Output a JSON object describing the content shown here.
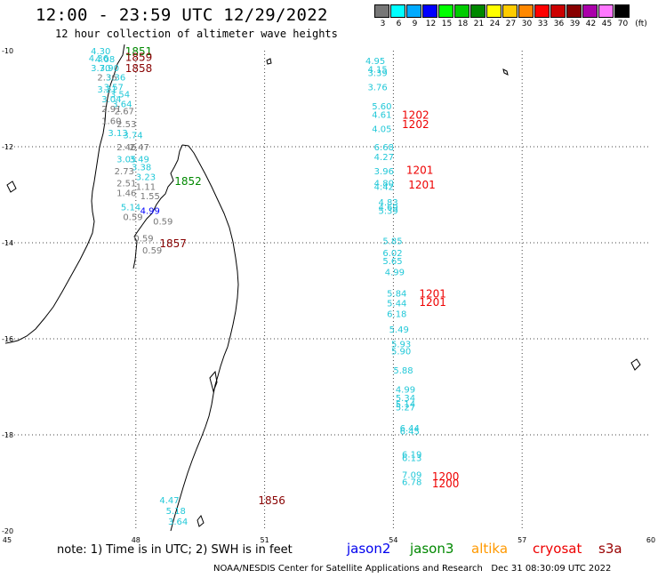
{
  "header": {
    "title": "12:00 - 23:59 UTC 12/29/2022",
    "subtitle": "12 hour collection of altimeter wave heights"
  },
  "legend": {
    "unit": "(ft)",
    "bins": [
      {
        "label": "3",
        "color": "#777777"
      },
      {
        "label": "6",
        "color": "#00ffff"
      },
      {
        "label": "9",
        "color": "#00aaff"
      },
      {
        "label": "12",
        "color": "#0000ff"
      },
      {
        "label": "15",
        "color": "#00ff00"
      },
      {
        "label": "18",
        "color": "#00cc00"
      },
      {
        "label": "21",
        "color": "#008800"
      },
      {
        "label": "24",
        "color": "#ffff00"
      },
      {
        "label": "27",
        "color": "#ffcc00"
      },
      {
        "label": "30",
        "color": "#ff8800"
      },
      {
        "label": "33",
        "color": "#ff0000"
      },
      {
        "label": "36",
        "color": "#cc0000"
      },
      {
        "label": "39",
        "color": "#880000"
      },
      {
        "label": "42",
        "color": "#aa00aa"
      },
      {
        "label": "45",
        "color": "#ff77ff"
      },
      {
        "label": "70",
        "color": "#000000"
      }
    ]
  },
  "axes": {
    "lat_labels": [
      "-10",
      "-12",
      "-14",
      "-16",
      "-18",
      "-20"
    ],
    "lon_labels": [
      "45",
      "48",
      "51",
      "54",
      "57",
      "60"
    ]
  },
  "observations": [
    {
      "v": "4.30",
      "lon": 46.95,
      "lat": -10.0,
      "c": "#22c8d8"
    },
    {
      "v": "4.36",
      "lon": 46.9,
      "lat": -10.15,
      "c": "#22c8d8"
    },
    {
      "v": "4.08",
      "lon": 47.05,
      "lat": -10.17,
      "c": "#22c8d8"
    },
    {
      "v": "3.70",
      "lon": 46.95,
      "lat": -10.35,
      "c": "#22c8d8"
    },
    {
      "v": "3.90",
      "lon": 47.15,
      "lat": -10.35,
      "c": "#22c8d8"
    },
    {
      "v": "2.36",
      "lon": 47.1,
      "lat": -10.55,
      "c": "#777777"
    },
    {
      "v": "3.36",
      "lon": 47.3,
      "lat": -10.55,
      "c": "#22c8d8"
    },
    {
      "v": "3.57",
      "lon": 47.25,
      "lat": -10.75,
      "c": "#22c8d8"
    },
    {
      "v": "3.21",
      "lon": 47.1,
      "lat": -10.8,
      "c": "#22c8d8"
    },
    {
      "v": "3.54",
      "lon": 47.4,
      "lat": -10.9,
      "c": "#22c8d8"
    },
    {
      "v": "3.04",
      "lon": 47.2,
      "lat": -11.0,
      "c": "#22c8d8"
    },
    {
      "v": "3.64",
      "lon": 47.45,
      "lat": -11.1,
      "c": "#22c8d8"
    },
    {
      "v": "2.91",
      "lon": 47.2,
      "lat": -11.2,
      "c": "#777777"
    },
    {
      "v": "2.67",
      "lon": 47.5,
      "lat": -11.25,
      "c": "#777777"
    },
    {
      "v": "1.60",
      "lon": 47.2,
      "lat": -11.45,
      "c": "#777777"
    },
    {
      "v": "2.53",
      "lon": 47.55,
      "lat": -11.52,
      "c": "#777777"
    },
    {
      "v": "3.13",
      "lon": 47.35,
      "lat": -11.7,
      "c": "#22c8d8"
    },
    {
      "v": "3.74",
      "lon": 47.7,
      "lat": -11.75,
      "c": "#22c8d8"
    },
    {
      "v": "2.46",
      "lon": 47.55,
      "lat": -12.0,
      "c": "#777777"
    },
    {
      "v": "2.47",
      "lon": 47.85,
      "lat": -12.0,
      "c": "#777777"
    },
    {
      "v": "3.05",
      "lon": 47.55,
      "lat": -12.25,
      "c": "#22c8d8"
    },
    {
      "v": "3.49",
      "lon": 47.85,
      "lat": -12.25,
      "c": "#22c8d8"
    },
    {
      "v": "3.38",
      "lon": 47.9,
      "lat": -12.42,
      "c": "#22c8d8"
    },
    {
      "v": "2.73",
      "lon": 47.5,
      "lat": -12.5,
      "c": "#777777"
    },
    {
      "v": "3.23",
      "lon": 48.0,
      "lat": -12.62,
      "c": "#22c8d8"
    },
    {
      "v": "2.51",
      "lon": 47.55,
      "lat": -12.75,
      "c": "#777777"
    },
    {
      "v": "1.11",
      "lon": 48.0,
      "lat": -12.82,
      "c": "#777777"
    },
    {
      "v": "1.46",
      "lon": 47.55,
      "lat": -12.95,
      "c": "#777777"
    },
    {
      "v": "1.55",
      "lon": 48.1,
      "lat": -13.02,
      "c": "#777777"
    },
    {
      "v": "5.14",
      "lon": 47.65,
      "lat": -13.25,
      "c": "#22c8d8"
    },
    {
      "v": "4.99",
      "lon": 48.1,
      "lat": -13.32,
      "c": "#0000ff"
    },
    {
      "v": "0.59",
      "lon": 47.7,
      "lat": -13.45,
      "c": "#777777"
    },
    {
      "v": "0.59",
      "lon": 48.4,
      "lat": -13.55,
      "c": "#777777"
    },
    {
      "v": "0.59",
      "lon": 47.95,
      "lat": -13.9,
      "c": "#777777"
    },
    {
      "v": "0.59",
      "lon": 48.15,
      "lat": -14.15,
      "c": "#777777"
    },
    {
      "v": "4.95",
      "lon": 53.35,
      "lat": -10.2,
      "c": "#22c8d8"
    },
    {
      "v": "4.15",
      "lon": 53.4,
      "lat": -10.38,
      "c": "#22c8d8"
    },
    {
      "v": "3.39",
      "lon": 53.4,
      "lat": -10.45,
      "c": "#22c8d8"
    },
    {
      "v": "3.76",
      "lon": 53.4,
      "lat": -10.75,
      "c": "#22c8d8"
    },
    {
      "v": "5.60",
      "lon": 53.5,
      "lat": -11.15,
      "c": "#22c8d8"
    },
    {
      "v": "4.61",
      "lon": 53.5,
      "lat": -11.32,
      "c": "#22c8d8"
    },
    {
      "v": "4.05",
      "lon": 53.5,
      "lat": -11.62,
      "c": "#22c8d8"
    },
    {
      "v": "6.68",
      "lon": 53.55,
      "lat": -12.0,
      "c": "#22c8d8"
    },
    {
      "v": "4.27",
      "lon": 53.55,
      "lat": -12.2,
      "c": "#22c8d8"
    },
    {
      "v": "3.96",
      "lon": 53.55,
      "lat": -12.5,
      "c": "#22c8d8"
    },
    {
      "v": "4.80",
      "lon": 53.55,
      "lat": -12.75,
      "c": "#22c8d8"
    },
    {
      "v": "4.42",
      "lon": 53.55,
      "lat": -12.82,
      "c": "#22c8d8"
    },
    {
      "v": "4.83",
      "lon": 53.65,
      "lat": -13.15,
      "c": "#22c8d8"
    },
    {
      "v": "4.69",
      "lon": 53.65,
      "lat": -13.25,
      "c": "#22c8d8"
    },
    {
      "v": "5.39",
      "lon": 53.65,
      "lat": -13.32,
      "c": "#22c8d8"
    },
    {
      "v": "5.85",
      "lon": 53.75,
      "lat": -13.95,
      "c": "#22c8d8"
    },
    {
      "v": "6.02",
      "lon": 53.75,
      "lat": -14.2,
      "c": "#22c8d8"
    },
    {
      "v": "5.65",
      "lon": 53.75,
      "lat": -14.37,
      "c": "#22c8d8"
    },
    {
      "v": "4.99",
      "lon": 53.8,
      "lat": -14.6,
      "c": "#22c8d8"
    },
    {
      "v": "5.84",
      "lon": 53.85,
      "lat": -15.05,
      "c": "#22c8d8"
    },
    {
      "v": "5.44",
      "lon": 53.85,
      "lat": -15.25,
      "c": "#22c8d8"
    },
    {
      "v": "6.18",
      "lon": 53.85,
      "lat": -15.47,
      "c": "#22c8d8"
    },
    {
      "v": "5.49",
      "lon": 53.9,
      "lat": -15.8,
      "c": "#22c8d8"
    },
    {
      "v": "5.93",
      "lon": 53.95,
      "lat": -16.1,
      "c": "#22c8d8"
    },
    {
      "v": "5.90",
      "lon": 53.95,
      "lat": -16.25,
      "c": "#22c8d8"
    },
    {
      "v": "5.88",
      "lon": 54.0,
      "lat": -16.65,
      "c": "#22c8d8"
    },
    {
      "v": "4.99",
      "lon": 54.05,
      "lat": -17.05,
      "c": "#22c8d8"
    },
    {
      "v": "5.34",
      "lon": 54.05,
      "lat": -17.22,
      "c": "#22c8d8"
    },
    {
      "v": "5.14",
      "lon": 54.05,
      "lat": -17.35,
      "c": "#22c8d8"
    },
    {
      "v": "5.27",
      "lon": 54.05,
      "lat": -17.42,
      "c": "#22c8d8"
    },
    {
      "v": "6.44",
      "lon": 54.15,
      "lat": -17.85,
      "c": "#22c8d8"
    },
    {
      "v": "6.45",
      "lon": 54.15,
      "lat": -17.92,
      "c": "#22c8d8"
    },
    {
      "v": "6.19",
      "lon": 54.2,
      "lat": -18.4,
      "c": "#22c8d8"
    },
    {
      "v": "6.13",
      "lon": 54.2,
      "lat": -18.47,
      "c": "#22c8d8"
    },
    {
      "v": "7.09",
      "lon": 54.2,
      "lat": -18.82,
      "c": "#22c8d8"
    },
    {
      "v": "6.78",
      "lon": 54.2,
      "lat": -18.97,
      "c": "#22c8d8"
    },
    {
      "v": "4.47",
      "lon": 48.55,
      "lat": -19.35,
      "c": "#22c8d8"
    },
    {
      "v": "5.18",
      "lon": 48.7,
      "lat": -19.57,
      "c": "#22c8d8"
    },
    {
      "v": "3.64",
      "lon": 48.75,
      "lat": -19.8,
      "c": "#22c8d8"
    }
  ],
  "pass_times": [
    {
      "t": "1851",
      "lon": 47.75,
      "lat": -10.0,
      "c": "#008800"
    },
    {
      "t": "1859",
      "lon": 47.75,
      "lat": -10.12,
      "c": "#880000"
    },
    {
      "t": "1858",
      "lon": 47.75,
      "lat": -10.35,
      "c": "#880000"
    },
    {
      "t": "1852",
      "lon": 48.9,
      "lat": -12.7,
      "c": "#008800"
    },
    {
      "t": "1857",
      "lon": 48.55,
      "lat": -14.0,
      "c": "#880000"
    },
    {
      "t": "1856",
      "lon": 50.85,
      "lat": -19.35,
      "c": "#880000"
    },
    {
      "t": "1202",
      "lon": 54.2,
      "lat": -11.32,
      "c": "#ee0000"
    },
    {
      "t": "1202",
      "lon": 54.2,
      "lat": -11.52,
      "c": "#ee0000"
    },
    {
      "t": "1201",
      "lon": 54.3,
      "lat": -12.47,
      "c": "#ee0000"
    },
    {
      "t": "1201",
      "lon": 54.35,
      "lat": -12.78,
      "c": "#ee0000"
    },
    {
      "t": "1201",
      "lon": 54.6,
      "lat": -15.05,
      "c": "#ee0000"
    },
    {
      "t": "1201",
      "lon": 54.6,
      "lat": -15.22,
      "c": "#ee0000"
    },
    {
      "t": "1200",
      "lon": 54.9,
      "lat": -18.85,
      "c": "#ee0000"
    },
    {
      "t": "1200",
      "lon": 54.9,
      "lat": -19.0,
      "c": "#ee0000"
    }
  ],
  "footer": {
    "note": "note: 1) Time is in UTC; 2) SWH is in feet",
    "satellites": [
      {
        "name": "jason2",
        "color": "#0000ee"
      },
      {
        "name": "jason3",
        "color": "#008800"
      },
      {
        "name": "altika",
        "color": "#ff9900"
      },
      {
        "name": "cryosat",
        "color": "#ee0000"
      },
      {
        "name": "s3a",
        "color": "#990000"
      }
    ],
    "credit": "NOAA/NESDIS Center for Satellite Applications and Research   Dec 31 08:30:09 UTC 2022"
  }
}
